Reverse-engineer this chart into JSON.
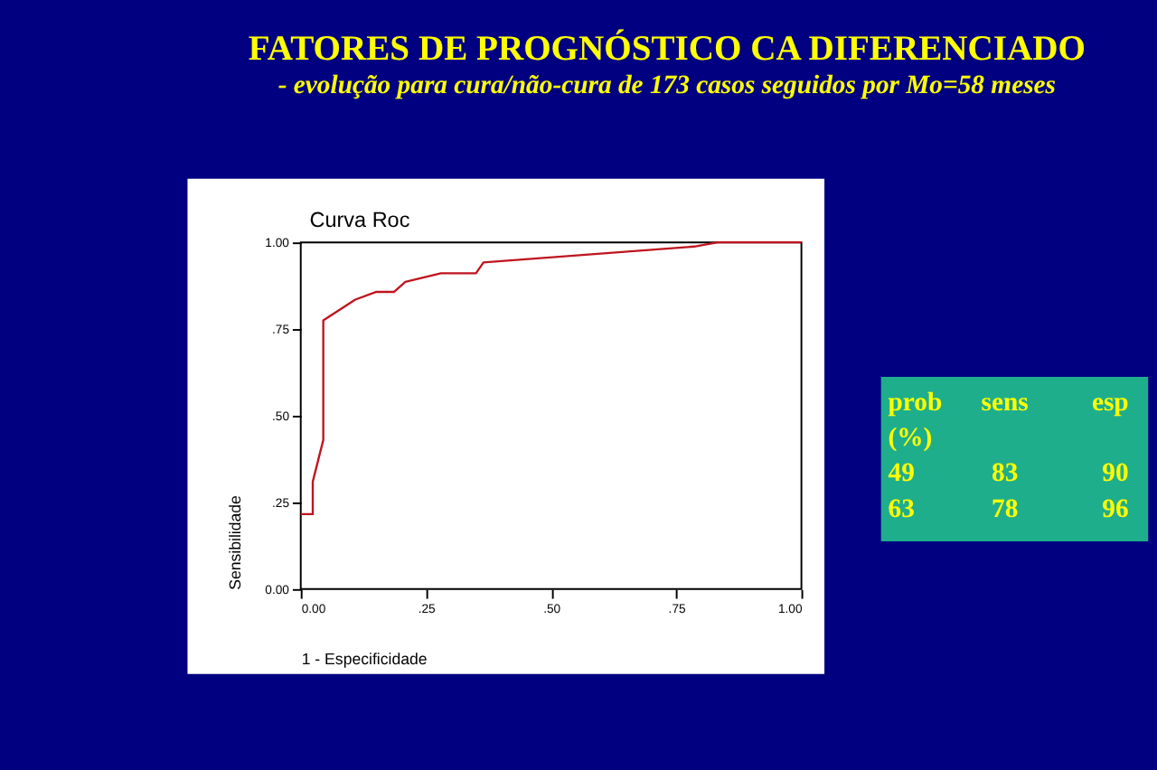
{
  "chart_data": {
    "type": "line",
    "title": "FATORES DE PROGNÓSTICO CA DIFERENCIADO",
    "subtitle": "- evolução para cura/não-cura de 173 casos seguidos por  Mo=58 meses",
    "xlabel": "1 - Especificidade",
    "ylabel": "Sensibilidade",
    "x": [
      0,
      0.024,
      0.024,
      0.045,
      0.045,
      0.109,
      0.15,
      0.186,
      0.209,
      0.28,
      0.35,
      0.365,
      0.786,
      0.833,
      1.0
    ],
    "series": [
      {
        "color": "#c0141e",
        "values": [
          0.216,
          0.216,
          0.31,
          0.43,
          0.775,
          0.835,
          0.857,
          0.857,
          0.886,
          0.911,
          0.911,
          0.942,
          0.988,
          1.0,
          1.0
        ]
      }
    ],
    "xlim": [
      0,
      1
    ],
    "ylim": [
      0,
      1
    ],
    "xticks": [
      {
        "value": 0,
        "label": "0.00"
      },
      {
        "value": 0.25,
        "label": ".25"
      },
      {
        "value": 0.5,
        "label": ".50"
      },
      {
        "value": 0.75,
        "label": ".75"
      },
      {
        "value": 1,
        "label": "1.00"
      }
    ],
    "yticks": [
      {
        "value": 0,
        "label": "0.00"
      },
      {
        "value": 0.25,
        "label": ".25"
      },
      {
        "value": 0.5,
        "label": ".50"
      },
      {
        "value": 0.75,
        "label": ".75"
      },
      {
        "value": 1,
        "label": "1.00"
      }
    ],
    "grid": false,
    "marker": "none",
    "line_style": "solid",
    "annotations": [
      "Curva Roc",
      "prob",
      "sens",
      "esp",
      "(%)",
      "49",
      "83",
      "90",
      "63",
      "78",
      "96"
    ]
  }
}
